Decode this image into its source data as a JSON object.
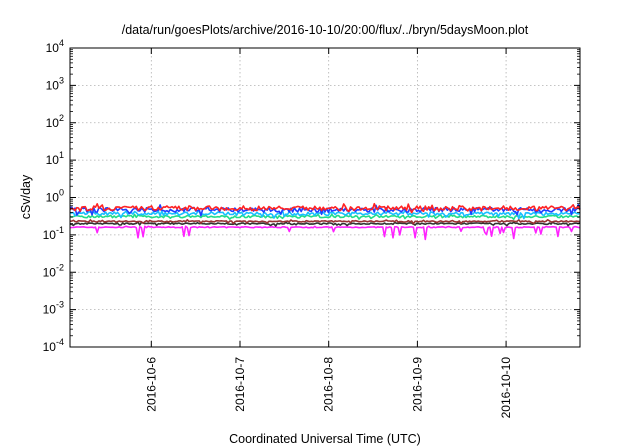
{
  "chart_data": {
    "type": "line",
    "title": "/data/run/goesPlots/archive/2016-10-10/20:00/flux/../bryn/5daysMoon.plot",
    "xlabel": "Coordinated Universal Time (UTC)",
    "ylabel": "cSv/day",
    "yscale": "log",
    "ylim": [
      0.0001,
      10000
    ],
    "xlim": [
      "2016-10-05 02:00",
      "2016-10-10 20:00"
    ],
    "x_ticks": [
      "2016-10-6",
      "2016-10-7",
      "2016-10-8",
      "2016-10-9",
      "2016-10-10"
    ],
    "y_ticks": [
      {
        "base": "10",
        "exp": "4",
        "value": 10000
      },
      {
        "base": "10",
        "exp": "3",
        "value": 1000
      },
      {
        "base": "10",
        "exp": "2",
        "value": 100
      },
      {
        "base": "10",
        "exp": "1",
        "value": 10
      },
      {
        "base": "10",
        "exp": "0",
        "value": 1
      },
      {
        "base": "10",
        "exp": "-1",
        "value": 0.1
      },
      {
        "base": "10",
        "exp": "-2",
        "value": 0.01
      },
      {
        "base": "10",
        "exp": "-3",
        "value": 0.001
      },
      {
        "base": "10",
        "exp": "-4",
        "value": 0.0001
      }
    ],
    "grid": true,
    "series": [
      {
        "color": "#ff2222",
        "level": 0.52,
        "spread": 0.14,
        "dips": 0.12
      },
      {
        "color": "#1f3fff",
        "level": 0.47,
        "spread": 0.14,
        "dips": 0.18
      },
      {
        "color": "#18bfff",
        "level": 0.37,
        "spread": 0.1,
        "dips": 0.14
      },
      {
        "color": "#22dd88",
        "level": 0.31,
        "spread": 0.07,
        "dips": 0.1
      },
      {
        "color": "#993333",
        "level": 0.23,
        "spread": 0.04,
        "dips": 0.08
      },
      {
        "color": "#333333",
        "level": 0.2,
        "spread": 0.04,
        "dips": 0.08
      },
      {
        "color": "#ff22ff",
        "level": 0.16,
        "spread": 0.03,
        "dips": 0.35
      }
    ]
  }
}
